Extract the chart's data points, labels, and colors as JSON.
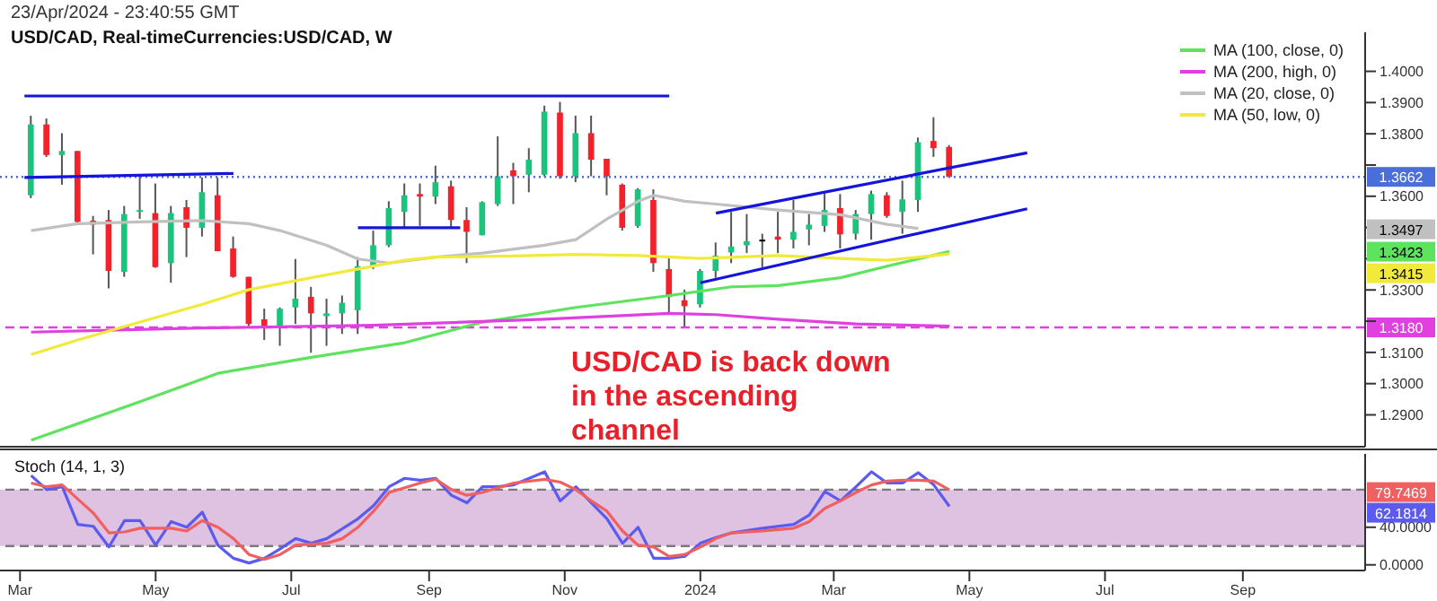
{
  "chart_data": [
    {
      "type": "candlestick",
      "subtitle": "23/Apr/2024 - 23:40:55 GMT",
      "title": "USD/CAD, Real-timeCurrencies:USD/CAD, W",
      "x": [
        "2023-03-06",
        "2023-03-13",
        "2023-03-20",
        "2023-03-27",
        "2023-04-03",
        "2023-04-10",
        "2023-04-17",
        "2023-04-24",
        "2023-05-01",
        "2023-05-08",
        "2023-05-15",
        "2023-05-22",
        "2023-05-29",
        "2023-06-05",
        "2023-06-12",
        "2023-06-19",
        "2023-06-26",
        "2023-07-03",
        "2023-07-10",
        "2023-07-17",
        "2023-07-24",
        "2023-07-31",
        "2023-08-07",
        "2023-08-14",
        "2023-08-21",
        "2023-08-28",
        "2023-09-04",
        "2023-09-11",
        "2023-09-18",
        "2023-09-25",
        "2023-10-02",
        "2023-10-09",
        "2023-10-16",
        "2023-10-23",
        "2023-10-30",
        "2023-11-06",
        "2023-11-13",
        "2023-11-20",
        "2023-11-27",
        "2023-12-04",
        "2023-12-11",
        "2023-12-18",
        "2023-12-25",
        "2024-01-01",
        "2024-01-08",
        "2024-01-15",
        "2024-01-22",
        "2024-01-29",
        "2024-02-05",
        "2024-02-12",
        "2024-02-19",
        "2024-02-26",
        "2024-03-04",
        "2024-03-11",
        "2024-03-18",
        "2024-03-25",
        "2024-04-01",
        "2024-04-08",
        "2024-04-15",
        "2024-04-22"
      ],
      "ohlc": [
        [
          1.3603,
          1.3858,
          1.3594,
          1.383
        ],
        [
          1.383,
          1.3849,
          1.3726,
          1.3732
        ],
        [
          1.3732,
          1.3802,
          1.3637,
          1.3745
        ],
        [
          1.3745,
          1.3745,
          1.3512,
          1.3518
        ],
        [
          1.3522,
          1.3537,
          1.3414,
          1.3509
        ],
        [
          1.3524,
          1.3556,
          1.3305,
          1.3361
        ],
        [
          1.3358,
          1.3569,
          1.3342,
          1.3543
        ],
        [
          1.355,
          1.3669,
          1.3528,
          1.3556
        ],
        [
          1.3546,
          1.3641,
          1.3371,
          1.3373
        ],
        [
          1.3386,
          1.3569,
          1.3323,
          1.3546
        ],
        [
          1.3565,
          1.3588,
          1.3405,
          1.3499
        ],
        [
          1.3499,
          1.366,
          1.3471,
          1.3613
        ],
        [
          1.3603,
          1.366,
          1.3424,
          1.3424
        ],
        [
          1.3433,
          1.3471,
          1.3339,
          1.3342
        ],
        [
          1.3342,
          1.3342,
          1.3184,
          1.3191
        ],
        [
          1.3206,
          1.324,
          1.314,
          1.3184
        ],
        [
          1.3184,
          1.3244,
          1.3121,
          1.324
        ],
        [
          1.3244,
          1.3399,
          1.3191,
          1.3272
        ],
        [
          1.3278,
          1.331,
          1.3099,
          1.3225
        ],
        [
          1.3216,
          1.3272,
          1.3121,
          1.3225
        ],
        [
          1.3225,
          1.3282,
          1.3159,
          1.3259
        ],
        [
          1.3235,
          1.3405,
          1.3159,
          1.3376
        ],
        [
          1.3376,
          1.349,
          1.3367,
          1.3443
        ],
        [
          1.3443,
          1.3584,
          1.3437,
          1.3562
        ],
        [
          1.355,
          1.3641,
          1.3499,
          1.3603
        ],
        [
          1.3607,
          1.3641,
          1.3505,
          1.3599
        ],
        [
          1.3599,
          1.3698,
          1.3575,
          1.3645
        ],
        [
          1.3632,
          1.365,
          1.3499,
          1.3524
        ],
        [
          1.3524,
          1.3565,
          1.3386,
          1.3486
        ],
        [
          1.3475,
          1.3584,
          1.3475,
          1.3581
        ],
        [
          1.3575,
          1.3792,
          1.3569,
          1.3664
        ],
        [
          1.3683,
          1.3707,
          1.3575,
          1.3664
        ],
        [
          1.3669,
          1.3754,
          1.3613,
          1.3717
        ],
        [
          1.3669,
          1.389,
          1.3664,
          1.3871
        ],
        [
          1.3868,
          1.3902,
          1.3656,
          1.3664
        ],
        [
          1.3664,
          1.3858,
          1.3645,
          1.3802
        ],
        [
          1.3802,
          1.3858,
          1.3664,
          1.3717
        ],
        [
          1.372,
          1.372,
          1.3603,
          1.3664
        ],
        [
          1.3637,
          1.3641,
          1.349,
          1.3499
        ],
        [
          1.3505,
          1.3626,
          1.3499,
          1.3622
        ],
        [
          1.3588,
          1.3622,
          1.3358,
          1.3386
        ],
        [
          1.3367,
          1.341,
          1.3225,
          1.3278
        ],
        [
          1.3267,
          1.3301,
          1.3178,
          1.3248
        ],
        [
          1.3254,
          1.3367,
          1.3244,
          1.3361
        ],
        [
          1.3361,
          1.3452,
          1.3339,
          1.341
        ],
        [
          1.342,
          1.355,
          1.3386,
          1.3439
        ],
        [
          1.3443,
          1.3543,
          1.3418,
          1.3456
        ],
        [
          1.3461,
          1.348,
          1.3373,
          1.3461
        ],
        [
          1.3471,
          1.355,
          1.3418,
          1.3461
        ],
        [
          1.3461,
          1.3588,
          1.3433,
          1.3486
        ],
        [
          1.3494,
          1.3543,
          1.3443,
          1.3509
        ],
        [
          1.3505,
          1.3613,
          1.3486,
          1.3556
        ],
        [
          1.3562,
          1.3607,
          1.3433,
          1.3478
        ],
        [
          1.348,
          1.3556,
          1.3461,
          1.3543
        ],
        [
          1.3543,
          1.3618,
          1.3461,
          1.3607
        ],
        [
          1.3603,
          1.3613,
          1.3531,
          1.3537
        ],
        [
          1.355,
          1.365,
          1.348,
          1.359
        ],
        [
          1.3588,
          1.3788,
          1.355,
          1.3773
        ],
        [
          1.3777,
          1.3853,
          1.3726,
          1.3754
        ],
        [
          1.3758,
          1.3764,
          1.366,
          1.3662
        ]
      ],
      "colors": [
        "#1bc47d",
        "#f2212a",
        "#1bc47d",
        "#f2212a",
        "#f2212a",
        "#f2212a",
        "#1bc47d",
        "#1bc47d",
        "#f2212a",
        "#1bc47d",
        "#f2212a",
        "#1bc47d",
        "#f2212a",
        "#f2212a",
        "#f2212a",
        "#f2212a",
        "#1bc47d",
        "#1bc47d",
        "#f2212a",
        "#1bc47d",
        "#1bc47d",
        "#1bc47d",
        "#1bc47d",
        "#1bc47d",
        "#1bc47d",
        "#f2212a",
        "#1bc47d",
        "#f2212a",
        "#f2212a",
        "#1bc47d",
        "#1bc47d",
        "#f2212a",
        "#1bc47d",
        "#1bc47d",
        "#f2212a",
        "#1bc47d",
        "#f2212a",
        "#f2212a",
        "#f2212a",
        "#1bc47d",
        "#f2212a",
        "#f2212a",
        "#f2212a",
        "#1bc47d",
        "#1bc47d",
        "#1bc47d",
        "#1bc47d",
        "#000000",
        "#f2212a",
        "#1bc47d",
        "#1bc47d",
        "#1bc47d",
        "#f2212a",
        "#1bc47d",
        "#1bc47d",
        "#f2212a",
        "#1bc47d",
        "#1bc47d",
        "#f2212a",
        "#f2212a"
      ],
      "series": [
        {
          "type": "line",
          "name": "MA (100, close, 0)",
          "color": "#5ee35e",
          "x": [
            "2023-03-06",
            "2023-04-24",
            "2023-05-29",
            "2023-07-10",
            "2023-08-21",
            "2023-09-25",
            "2023-11-06",
            "2023-12-18",
            "2024-01-15",
            "2024-02-05",
            "2024-03-04",
            "2024-03-25",
            "2024-04-22"
          ],
          "values": [
            1.2819,
            1.2942,
            1.3033,
            1.3084,
            1.3131,
            1.3197,
            1.3244,
            1.3282,
            1.331,
            1.3314,
            1.3339,
            1.3376,
            1.3423
          ]
        },
        {
          "type": "line",
          "name": "MA (200, high, 0)",
          "color": "#e040e0",
          "x": [
            "2023-03-06",
            "2023-05-22",
            "2023-08-07",
            "2023-10-23",
            "2023-12-18",
            "2024-01-08",
            "2024-02-05",
            "2024-03-11",
            "2024-04-22"
          ],
          "values": [
            1.3165,
            1.3178,
            1.3187,
            1.3206,
            1.3225,
            1.3221,
            1.3206,
            1.3191,
            1.3184
          ]
        },
        {
          "type": "line",
          "name": "MA (20, close, 0)",
          "color": "#c0c0c0",
          "x": [
            "2023-03-06",
            "2023-03-27",
            "2023-04-24",
            "2023-05-22",
            "2023-06-12",
            "2023-06-26",
            "2023-07-17",
            "2023-07-31",
            "2023-08-14",
            "2023-09-04",
            "2023-09-25",
            "2023-10-23",
            "2023-11-06",
            "2023-11-20",
            "2023-12-04",
            "2023-12-11",
            "2023-12-25",
            "2024-01-08",
            "2024-02-05",
            "2024-03-04",
            "2024-03-25",
            "2024-04-08"
          ],
          "values": [
            1.349,
            1.3512,
            1.3518,
            1.3522,
            1.3512,
            1.349,
            1.3443,
            1.3399,
            1.3386,
            1.3405,
            1.3418,
            1.3443,
            1.3461,
            1.3527,
            1.3584,
            1.3603,
            1.3584,
            1.3575,
            1.3556,
            1.3541,
            1.351,
            1.3497
          ]
        },
        {
          "type": "line",
          "name": "MA (50, low, 0)",
          "color": "#f2ea3a",
          "x": [
            "2023-03-06",
            "2023-03-27",
            "2023-04-24",
            "2023-05-22",
            "2023-06-12",
            "2023-07-10",
            "2023-07-31",
            "2023-08-21",
            "2023-09-04",
            "2023-10-09",
            "2023-11-06",
            "2023-12-04",
            "2024-01-01",
            "2024-02-05",
            "2024-03-04",
            "2024-03-25",
            "2024-04-22"
          ],
          "values": [
            1.3093,
            1.314,
            1.3197,
            1.3254,
            1.3301,
            1.3339,
            1.3367,
            1.3395,
            1.3405,
            1.3409,
            1.3414,
            1.341,
            1.3401,
            1.341,
            1.3401,
            1.3395,
            1.3415
          ]
        },
        {
          "type": "line",
          "color": "#1414dc",
          "x": [
            "2023-03-03",
            "2023-12-18"
          ],
          "values": [
            1.3921,
            1.3921
          ]
        },
        {
          "type": "line",
          "color": "#1414dc",
          "x": [
            "2023-03-03",
            "2023-06-05"
          ],
          "values": [
            1.366,
            1.3673
          ]
        },
        {
          "type": "line",
          "color": "#1414dc",
          "x": [
            "2023-07-31",
            "2023-09-15"
          ],
          "values": [
            1.3499,
            1.3499
          ]
        },
        {
          "type": "line",
          "color": "#1414dc",
          "x": [
            "2024-01-08",
            "2024-05-27"
          ],
          "values": [
            1.3546,
            1.3739
          ]
        },
        {
          "type": "line",
          "color": "#1414dc",
          "x": [
            "2024-01-01",
            "2024-05-27"
          ],
          "values": [
            1.3323,
            1.356
          ]
        }
      ],
      "ref_lines": [
        {
          "axis": "y",
          "value": 1.318,
          "label": "1.3180",
          "color": "#e040e0",
          "line_style": "dashed"
        },
        {
          "axis": "y",
          "value": 1.3662,
          "label": "1.3662",
          "color": "#4a6fd8",
          "line_style": "dotted"
        }
      ],
      "annotations": [
        "USD/CAD is back down in the ascending channel",
        "1.3497",
        "1.3423",
        "1.3415"
      ],
      "xlim": [
        "2023-02-20",
        "2024-10-26"
      ],
      "ylim": [
        1.2798,
        1.4125
      ],
      "yticks": [
        {
          "value": 1.29,
          "label": "1.2900"
        },
        {
          "value": 1.3,
          "label": "1.3000"
        },
        {
          "value": 1.31,
          "label": "1.3100"
        },
        {
          "value": 1.32,
          "label": null
        },
        {
          "value": 1.33,
          "label": "1.3300"
        },
        {
          "value": 1.34,
          "label": null
        },
        {
          "value": 1.35,
          "label": null
        },
        {
          "value": 1.36,
          "label": "1.3600"
        },
        {
          "value": 1.37,
          "label": null
        },
        {
          "value": 1.38,
          "label": "1.3800"
        },
        {
          "value": 1.39,
          "label": "1.3900"
        },
        {
          "value": 1.4,
          "label": "1.4000"
        }
      ],
      "tick_labels": "y",
      "legend": "top right",
      "grid": false
    },
    {
      "type": "line",
      "title": "Stoch (14, 1, 3)",
      "series": [
        {
          "color": "#5b5bf0",
          "x": [
            "2023-03-06",
            "2023-03-13",
            "2023-03-20",
            "2023-03-27",
            "2023-04-03",
            "2023-04-10",
            "2023-04-17",
            "2023-04-24",
            "2023-05-01",
            "2023-05-08",
            "2023-05-15",
            "2023-05-22",
            "2023-05-29",
            "2023-06-05",
            "2023-06-12",
            "2023-06-19",
            "2023-06-26",
            "2023-07-03",
            "2023-07-10",
            "2023-07-17",
            "2023-07-31",
            "2023-08-07",
            "2023-08-14",
            "2023-08-21",
            "2023-08-28",
            "2023-09-04",
            "2023-09-11",
            "2023-09-18",
            "2023-09-25",
            "2023-10-02",
            "2023-10-09",
            "2023-10-23",
            "2023-10-30",
            "2023-11-06",
            "2023-11-13",
            "2023-11-20",
            "2023-11-27",
            "2023-12-04",
            "2023-12-11",
            "2023-12-18",
            "2023-12-25",
            "2024-01-01",
            "2024-01-08",
            "2024-01-15",
            "2024-01-29",
            "2024-02-12",
            "2024-02-19",
            "2024-02-26",
            "2024-03-04",
            "2024-03-11",
            "2024-03-18",
            "2024-03-25",
            "2024-04-01",
            "2024-04-08",
            "2024-04-15",
            "2024-04-22"
          ],
          "values": [
            95,
            80,
            83,
            43,
            41,
            19,
            47,
            47,
            21,
            46,
            40,
            56,
            21,
            7,
            2,
            7,
            17,
            28,
            23,
            28,
            49,
            63,
            83,
            92,
            90,
            92,
            74,
            66,
            83,
            83,
            85,
            99,
            68,
            83,
            66,
            49,
            23,
            40,
            7,
            7,
            9,
            23,
            29,
            34,
            39,
            43,
            53,
            78,
            68,
            83,
            99,
            87,
            87,
            98,
            85,
            62.1814
          ]
        },
        {
          "color": "#f06060",
          "x": [
            "2023-03-06",
            "2023-03-13",
            "2023-03-20",
            "2023-03-27",
            "2023-04-03",
            "2023-04-10",
            "2023-04-17",
            "2023-04-24",
            "2023-05-08",
            "2023-05-15",
            "2023-05-22",
            "2023-05-29",
            "2023-06-05",
            "2023-06-12",
            "2023-06-19",
            "2023-06-26",
            "2023-07-03",
            "2023-07-17",
            "2023-07-24",
            "2023-07-31",
            "2023-08-07",
            "2023-08-14",
            "2023-08-28",
            "2023-09-04",
            "2023-09-11",
            "2023-09-18",
            "2023-09-25",
            "2023-10-02",
            "2023-10-09",
            "2023-10-23",
            "2023-10-30",
            "2023-11-06",
            "2023-11-13",
            "2023-11-20",
            "2023-11-27",
            "2023-12-04",
            "2023-12-11",
            "2023-12-18",
            "2023-12-25",
            "2024-01-01",
            "2024-01-08",
            "2024-01-15",
            "2024-01-29",
            "2024-02-12",
            "2024-02-19",
            "2024-02-26",
            "2024-03-04",
            "2024-03-11",
            "2024-03-18",
            "2024-03-25",
            "2024-04-01",
            "2024-04-08",
            "2024-04-15",
            "2024-04-22"
          ],
          "values": [
            87,
            83,
            85,
            70,
            55,
            34,
            35,
            39,
            39,
            36,
            47,
            40,
            28,
            11,
            6,
            11,
            21,
            23,
            28,
            40,
            57,
            77,
            87,
            91,
            80,
            74,
            77,
            82,
            87,
            91,
            88,
            80,
            68,
            57,
            36,
            21,
            19,
            9,
            11,
            19,
            28,
            34,
            36,
            39,
            46,
            60,
            68,
            77,
            85,
            89,
            90,
            90,
            89,
            79.7469
          ]
        }
      ],
      "bands": [
        {
          "axis": "y",
          "from": 20,
          "to": 80,
          "color": "#dfc2e2"
        }
      ],
      "ref_lines": [
        {
          "axis": "y",
          "value": 20,
          "color": "#7a7a7a",
          "line_style": "dashed"
        },
        {
          "axis": "y",
          "value": 80,
          "color": "#7a7a7a",
          "line_style": "dashed"
        }
      ],
      "annotations": [
        "79.7469",
        "62.1814"
      ],
      "xlim": [
        "2023-02-20",
        "2024-10-26"
      ],
      "xticks": [
        {
          "value": "2023-03-01",
          "label": "Mar"
        },
        {
          "value": "2023-05-01",
          "label": "May"
        },
        {
          "value": "2023-07-01",
          "label": "Jul"
        },
        {
          "value": "2023-09-01",
          "label": "Sep"
        },
        {
          "value": "2023-11-01",
          "label": "Nov"
        },
        {
          "value": "2024-01-01",
          "label": "2024"
        },
        {
          "value": "2024-03-01",
          "label": "Mar"
        },
        {
          "value": "2024-05-01",
          "label": "May"
        },
        {
          "value": "2024-07-01",
          "label": "Jul"
        },
        {
          "value": "2024-09-01",
          "label": "Sep"
        }
      ],
      "ylim": [
        -6,
        118
      ],
      "yticks": [
        {
          "value": 0,
          "label": "0.0000"
        },
        {
          "value": 40,
          "label": "40.0000"
        }
      ],
      "grid": false
    }
  ]
}
